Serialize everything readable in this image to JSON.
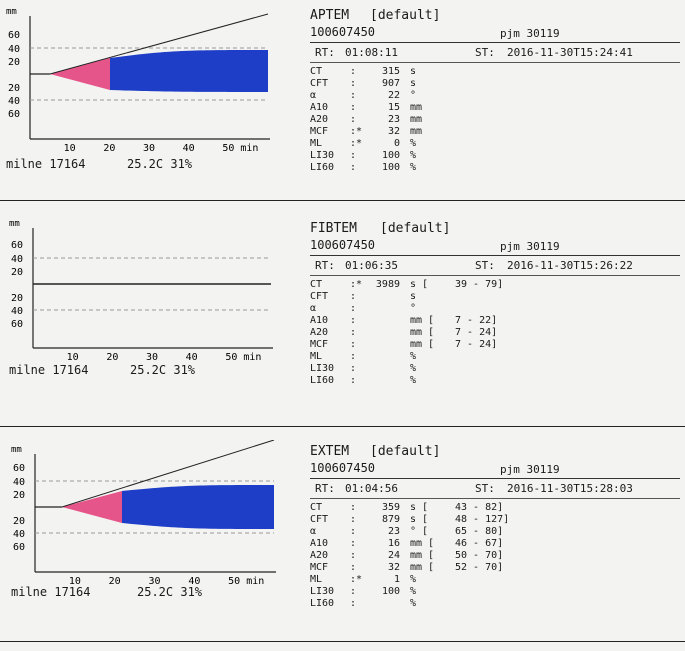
{
  "scale": {
    "mm": "mm",
    "ylabels": [
      "60",
      "40",
      "20",
      "20",
      "40",
      "60"
    ],
    "xlabels": [
      "10",
      "20",
      "30",
      "40",
      "50 min"
    ]
  },
  "colors": {
    "pink": "#e6558a",
    "blue": "#1e3ec8",
    "line": "#222222",
    "dash": "#9a9a9a"
  },
  "panels": [
    {
      "name": "aptem",
      "footer": {
        "id": "milne 17164",
        "temp": "25.2C 31%"
      },
      "report": {
        "title": "APTEM",
        "default": "[default]",
        "id": "100607450",
        "pjm": "pjm 30119",
        "rt_label": "RT:",
        "rt": "01:08:11",
        "st_label": "ST:",
        "st": "2016-11-30T15:24:41",
        "rows": [
          {
            "p": "CT",
            "c": ":",
            "v": "315",
            "u": "s",
            "ref": ""
          },
          {
            "p": "CFT",
            "c": ":",
            "v": "907",
            "u": "s",
            "ref": ""
          },
          {
            "p": "α",
            "c": ":",
            "v": "22",
            "u": "°",
            "ref": ""
          },
          {
            "p": "A10",
            "c": ":",
            "v": "15",
            "u": "mm",
            "ref": ""
          },
          {
            "p": "A20",
            "c": ":",
            "v": "23",
            "u": "mm",
            "ref": ""
          },
          {
            "p": "MCF",
            "c": ":*",
            "v": "32",
            "u": "mm",
            "ref": ""
          },
          {
            "p": "ML",
            "c": ":*",
            "v": "0",
            "u": "%",
            "ref": ""
          },
          {
            "p": "LI30",
            "c": ":",
            "v": "100",
            "u": "%",
            "ref": ""
          },
          {
            "p": "LI60",
            "c": ":",
            "v": "100",
            "u": "%",
            "ref": ""
          }
        ]
      }
    },
    {
      "name": "fibtem",
      "footer": {
        "id": "milne 17164",
        "temp": "25.2C 31%"
      },
      "report": {
        "title": "FIBTEM",
        "default": "[default]",
        "id": "100607450",
        "pjm": "pjm 30119",
        "rt_label": "RT:",
        "rt": "01:06:35",
        "st_label": "ST:",
        "st": "2016-11-30T15:26:22",
        "rows": [
          {
            "p": "CT",
            "c": ":*",
            "v": "3989",
            "u": "s [",
            "ref": "39 -   79]"
          },
          {
            "p": "CFT",
            "c": ":",
            "v": "",
            "u": "s",
            "ref": ""
          },
          {
            "p": "α",
            "c": ":",
            "v": "",
            "u": "°",
            "ref": ""
          },
          {
            "p": "A10",
            "c": ":",
            "v": "",
            "u": "mm [",
            "ref": "7 -   22]"
          },
          {
            "p": "A20",
            "c": ":",
            "v": "",
            "u": "mm [",
            "ref": "7 -   24]"
          },
          {
            "p": "MCF",
            "c": ":",
            "v": "",
            "u": "mm [",
            "ref": "7 -   24]"
          },
          {
            "p": "ML",
            "c": ":",
            "v": "",
            "u": "%",
            "ref": ""
          },
          {
            "p": "LI30",
            "c": ":",
            "v": "",
            "u": "%",
            "ref": ""
          },
          {
            "p": "LI60",
            "c": ":",
            "v": "",
            "u": "%",
            "ref": ""
          }
        ]
      }
    },
    {
      "name": "extem",
      "footer": {
        "id": "milne 17164",
        "temp": "25.2C 31%"
      },
      "report": {
        "title": "EXTEM",
        "default": "[default]",
        "id": "100607450",
        "pjm": "pjm 30119",
        "rt_label": "RT:",
        "rt": "01:04:56",
        "st_label": "ST:",
        "st": "2016-11-30T15:28:03",
        "rows": [
          {
            "p": "CT",
            "c": ":",
            "v": "359",
            "u": "s [",
            "ref": "43 -   82]"
          },
          {
            "p": "CFT",
            "c": ":",
            "v": "879",
            "u": "s [",
            "ref": "48 -  127]"
          },
          {
            "p": "α",
            "c": ":",
            "v": "23",
            "u": "° [",
            "ref": "65 -   80]"
          },
          {
            "p": "A10",
            "c": ":",
            "v": "16",
            "u": "mm [",
            "ref": "46 -   67]"
          },
          {
            "p": "A20",
            "c": ":",
            "v": "24",
            "u": "mm [",
            "ref": "50 -   70]"
          },
          {
            "p": "MCF",
            "c": ":",
            "v": "32",
            "u": "mm [",
            "ref": "52 -   70]"
          },
          {
            "p": "ML",
            "c": ":*",
            "v": "1",
            "u": "%",
            "ref": ""
          },
          {
            "p": "LI30",
            "c": ":",
            "v": "100",
            "u": "%",
            "ref": ""
          },
          {
            "p": "LI60",
            "c": ":",
            "v": "",
            "u": "%",
            "ref": ""
          }
        ]
      }
    }
  ]
}
